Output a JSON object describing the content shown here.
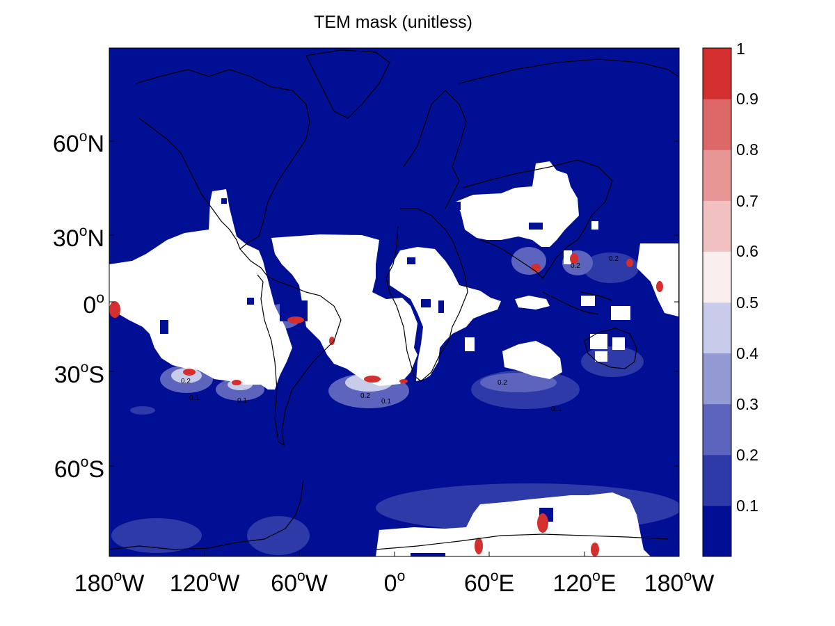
{
  "title": "TEM mask (unitless)",
  "colors": {
    "ocean_low": "#000f94",
    "land_mask": "#ffffff",
    "coast": "#000000",
    "colorbar": [
      "#000f94",
      "#2d3aa8",
      "#5d64bd",
      "#9399d3",
      "#c9cbea",
      "#fbeeee",
      "#f1c1c1",
      "#e79595",
      "#dd6868",
      "#d32f2f"
    ]
  },
  "y_axis": {
    "ticks": [
      {
        "deg": "60",
        "hemi": "N"
      },
      {
        "deg": "30",
        "hemi": "N"
      },
      {
        "deg": "0",
        "hemi": ""
      },
      {
        "deg": "30",
        "hemi": "S"
      },
      {
        "deg": "60",
        "hemi": "S"
      }
    ]
  },
  "x_axis": {
    "ticks": [
      {
        "deg": "180",
        "hemi": "W"
      },
      {
        "deg": "120",
        "hemi": "W"
      },
      {
        "deg": "60",
        "hemi": "W"
      },
      {
        "deg": "0",
        "hemi": ""
      },
      {
        "deg": "60",
        "hemi": "E"
      },
      {
        "deg": "120",
        "hemi": "E"
      },
      {
        "deg": "180",
        "hemi": "W"
      }
    ]
  },
  "colorbar": {
    "labels": [
      "1",
      "0.9",
      "0.8",
      "0.7",
      "0.6",
      "0.5",
      "0.4",
      "0.3",
      "0.2",
      "0.1"
    ]
  },
  "contour_labels": [
    "0.2",
    "0.1",
    "0.1",
    "0.2",
    "0.1",
    "0.2",
    "0.2",
    "0.1",
    "0.2"
  ]
}
